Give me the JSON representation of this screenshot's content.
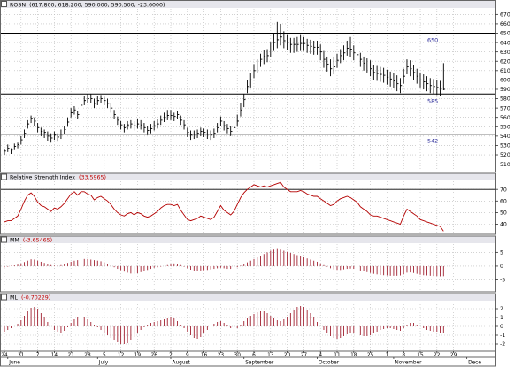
{
  "colors": {
    "background": "#ffffff",
    "panel_header_bg": "#e6e6ec",
    "price_bar": "#000000",
    "level_line": "#000000",
    "level_label": "#2a2a9a",
    "rsi_line": "#b40000",
    "histogram": "#a02030",
    "legend_value": "#c00000",
    "grid": "#b8b8b8",
    "axis_text": "#000000"
  },
  "panels": {
    "price": {
      "title": "ROSN",
      "value": "(617.800, 618.200, 590.000, 590.500, -23.6000)",
      "icon": "panel-box-icon"
    },
    "rsi": {
      "title": "Relative Strength Index",
      "value": "(33.5965)",
      "icon": "panel-box-icon"
    },
    "mm": {
      "title": "MM",
      "value": "(-3.65465)",
      "icon": "panel-box-icon"
    },
    "ml": {
      "title": "ML",
      "value": "(-0.70229)",
      "icon": "panel-box-icon"
    }
  },
  "x_axis": {
    "day_ticks": [
      {
        "i": 0,
        "label": "24"
      },
      {
        "i": 5,
        "label": "31"
      },
      {
        "i": 10,
        "label": "7"
      },
      {
        "i": 15,
        "label": "14"
      },
      {
        "i": 20,
        "label": "21"
      },
      {
        "i": 25,
        "label": "28"
      },
      {
        "i": 30,
        "label": "5"
      },
      {
        "i": 35,
        "label": "12"
      },
      {
        "i": 40,
        "label": "19"
      },
      {
        "i": 45,
        "label": "26"
      },
      {
        "i": 50,
        "label": "2"
      },
      {
        "i": 55,
        "label": "9"
      },
      {
        "i": 60,
        "label": "16"
      },
      {
        "i": 65,
        "label": "23"
      },
      {
        "i": 70,
        "label": "30"
      },
      {
        "i": 75,
        "label": "6"
      },
      {
        "i": 80,
        "label": "13"
      },
      {
        "i": 85,
        "label": "20"
      },
      {
        "i": 90,
        "label": "27"
      },
      {
        "i": 95,
        "label": "4"
      },
      {
        "i": 100,
        "label": "11"
      },
      {
        "i": 105,
        "label": "18"
      },
      {
        "i": 110,
        "label": "25"
      },
      {
        "i": 115,
        "label": "1"
      },
      {
        "i": 120,
        "label": "8"
      },
      {
        "i": 125,
        "label": "15"
      },
      {
        "i": 130,
        "label": "22"
      },
      {
        "i": 135,
        "label": "29"
      }
    ],
    "month_ticks": [
      {
        "i": 1,
        "label": "June"
      },
      {
        "i": 28,
        "label": "July"
      },
      {
        "i": 50,
        "label": "August"
      },
      {
        "i": 72,
        "label": "September"
      },
      {
        "i": 94,
        "label": "October"
      },
      {
        "i": 117,
        "label": "November"
      },
      {
        "i": 139,
        "label": "Dece"
      }
    ]
  },
  "chart_data": [
    {
      "type": "ohlc",
      "series_name": "ROSN",
      "y_ticks": [
        510,
        520,
        530,
        540,
        550,
        560,
        570,
        580,
        590,
        600,
        610,
        620,
        630,
        640,
        650,
        660,
        670
      ],
      "ylim": [
        503,
        676
      ],
      "levels": [
        {
          "value": 650,
          "label": "650"
        },
        {
          "value": 585,
          "label": "585"
        },
        {
          "value": 542,
          "label": "542"
        }
      ],
      "close": [
        524,
        527,
        525,
        529,
        531,
        536,
        543,
        553,
        559,
        556,
        549,
        545,
        544,
        540,
        538,
        541,
        539,
        542,
        547,
        555,
        565,
        568,
        563,
        573,
        578,
        580,
        580,
        575,
        578,
        580,
        578,
        575,
        570,
        563,
        557,
        552,
        549,
        552,
        553,
        551,
        553,
        552,
        549,
        546,
        548,
        551,
        553,
        557,
        560,
        562,
        562,
        561,
        563,
        557,
        552,
        544,
        541,
        542,
        543,
        545,
        544,
        542,
        541,
        543,
        549,
        556,
        551,
        548,
        545,
        549,
        556,
        568,
        579,
        593,
        600,
        610,
        616,
        622,
        625,
        626,
        632,
        640,
        643,
        646,
        642,
        640,
        638,
        638,
        638,
        639,
        639,
        637,
        636,
        635,
        635,
        630,
        622,
        617,
        612,
        614,
        621,
        626,
        629,
        634,
        633,
        629,
        627,
        622,
        618,
        616,
        612,
        608,
        607,
        606,
        605,
        603,
        601,
        599,
        596,
        594,
        604,
        614,
        612,
        608,
        604,
        600,
        598,
        596,
        594,
        593,
        592,
        591,
        590
      ],
      "high": [
        526,
        531,
        527,
        532,
        533,
        540,
        547,
        557,
        562,
        560,
        554,
        549,
        547,
        545,
        543,
        545,
        543,
        547,
        551,
        560,
        570,
        572,
        567,
        578,
        583,
        585,
        585,
        580,
        583,
        584,
        582,
        580,
        575,
        568,
        561,
        556,
        553,
        556,
        557,
        556,
        558,
        557,
        554,
        551,
        553,
        556,
        558,
        562,
        565,
        568,
        568,
        565,
        567,
        562,
        557,
        549,
        546,
        546,
        547,
        549,
        548,
        547,
        546,
        548,
        554,
        561,
        556,
        553,
        551,
        554,
        563,
        575,
        585,
        600,
        607,
        617,
        622,
        628,
        632,
        633,
        640,
        650,
        662,
        660,
        652,
        648,
        645,
        645,
        646,
        648,
        646,
        644,
        643,
        642,
        642,
        638,
        631,
        625,
        622,
        625,
        628,
        633,
        637,
        642,
        646,
        637,
        634,
        629,
        625,
        623,
        621,
        616,
        615,
        614,
        613,
        611,
        609,
        607,
        605,
        602,
        612,
        622,
        621,
        616,
        612,
        608,
        606,
        604,
        602,
        601,
        600,
        599,
        618
      ],
      "low": [
        520,
        523,
        521,
        525,
        527,
        531,
        538,
        548,
        554,
        551,
        544,
        540,
        538,
        535,
        533,
        536,
        534,
        537,
        542,
        550,
        560,
        563,
        558,
        568,
        573,
        575,
        575,
        570,
        573,
        575,
        573,
        570,
        565,
        558,
        552,
        547,
        544,
        547,
        548,
        546,
        548,
        547,
        544,
        541,
        543,
        546,
        548,
        552,
        555,
        557,
        557,
        556,
        558,
        552,
        547,
        539,
        536,
        537,
        538,
        540,
        539,
        537,
        536,
        538,
        544,
        551,
        546,
        543,
        540,
        544,
        550,
        561,
        571,
        586,
        592,
        602,
        608,
        614,
        617,
        619,
        624,
        631,
        634,
        637,
        634,
        632,
        629,
        629,
        630,
        631,
        631,
        629,
        628,
        627,
        627,
        621,
        613,
        609,
        604,
        606,
        613,
        618,
        621,
        626,
        625,
        621,
        619,
        614,
        610,
        608,
        604,
        600,
        599,
        598,
        597,
        595,
        593,
        591,
        588,
        586,
        596,
        606,
        604,
        600,
        596,
        592,
        590,
        588,
        586,
        585,
        584,
        583,
        589
      ]
    },
    {
      "type": "line",
      "series_name": "Relative Strength Index",
      "y_ticks": [
        40,
        50,
        60,
        70
      ],
      "ylim": [
        32,
        77
      ],
      "levels": [
        {
          "value": 70
        },
        {
          "value": 30
        }
      ],
      "values": [
        42,
        43,
        43,
        45,
        47,
        53,
        60,
        65,
        67,
        64,
        59,
        56,
        55,
        53,
        51,
        54,
        53,
        55,
        58,
        62,
        66,
        68,
        65,
        68,
        68,
        66,
        65,
        61,
        63,
        64,
        62,
        60,
        57,
        53,
        50,
        48,
        47,
        49,
        50,
        48,
        50,
        49,
        47,
        46,
        47,
        49,
        51,
        54,
        56,
        57,
        57,
        56,
        57,
        52,
        48,
        44,
        43,
        44,
        45,
        47,
        46,
        45,
        44,
        46,
        51,
        56,
        52,
        50,
        48,
        51,
        57,
        63,
        67,
        70,
        72,
        74,
        73,
        72,
        73,
        72,
        73,
        74,
        75,
        76,
        72,
        70,
        68,
        68,
        68,
        69,
        68,
        66,
        65,
        64,
        64,
        62,
        60,
        58,
        56,
        57,
        60,
        62,
        63,
        64,
        63,
        61,
        59,
        55,
        53,
        51,
        48,
        47,
        47,
        46,
        45,
        44,
        43,
        42,
        41,
        40,
        47,
        53,
        51,
        49,
        47,
        44,
        43,
        42,
        41,
        40,
        39,
        38,
        34
      ]
    },
    {
      "type": "histogram",
      "series_name": "MM",
      "y_ticks": [
        -5,
        0,
        5
      ],
      "ylim": [
        -9,
        8
      ],
      "values": [
        -0.4,
        -0.2,
        0.1,
        0.3,
        0.6,
        1.0,
        1.5,
        2.0,
        2.5,
        2.4,
        2.0,
        1.6,
        1.2,
        0.8,
        0.4,
        0.2,
        0.2,
        0.4,
        0.8,
        1.2,
        1.6,
        2.0,
        2.2,
        2.4,
        2.6,
        2.6,
        2.4,
        2.2,
        2.0,
        1.8,
        1.4,
        0.8,
        0.2,
        -0.4,
        -1.0,
        -1.5,
        -2.0,
        -2.4,
        -2.7,
        -2.8,
        -2.6,
        -2.2,
        -1.8,
        -1.4,
        -1.0,
        -0.6,
        -0.4,
        -0.2,
        0.0,
        0.4,
        0.8,
        1.0,
        0.8,
        0.4,
        -0.2,
        -0.8,
        -1.3,
        -1.6,
        -1.7,
        -1.6,
        -1.5,
        -1.4,
        -1.2,
        -1.0,
        -0.8,
        -0.6,
        -0.8,
        -1.0,
        -1.0,
        -0.8,
        -0.4,
        0.2,
        0.8,
        1.4,
        2.0,
        2.6,
        3.2,
        3.8,
        4.4,
        5.0,
        5.6,
        6.0,
        6.2,
        6.0,
        5.6,
        5.2,
        4.8,
        4.4,
        4.0,
        3.6,
        3.2,
        2.8,
        2.4,
        2.0,
        1.6,
        1.0,
        0.4,
        -0.2,
        -0.8,
        -1.2,
        -1.4,
        -1.4,
        -1.2,
        -1.0,
        -0.9,
        -1.0,
        -1.2,
        -1.6,
        -1.9,
        -2.2,
        -2.5,
        -2.8,
        -3.0,
        -3.2,
        -3.3,
        -3.4,
        -3.5,
        -3.5,
        -3.5,
        -3.4,
        -3.0,
        -2.4,
        -2.3,
        -2.5,
        -2.8,
        -3.1,
        -3.3,
        -3.4,
        -3.5,
        -3.6,
        -3.6,
        -3.7,
        -3.65
      ]
    },
    {
      "type": "histogram",
      "series_name": "ML",
      "y_ticks": [
        -2,
        -1,
        0,
        1,
        2
      ],
      "ylim": [
        -2.7,
        2.8
      ],
      "values": [
        -0.6,
        -0.4,
        -0.2,
        0.0,
        0.3,
        0.7,
        1.2,
        1.7,
        2.1,
        2.2,
        2.0,
        1.5,
        1.0,
        0.5,
        0.0,
        -0.4,
        -0.6,
        -0.7,
        -0.5,
        -0.1,
        0.4,
        0.8,
        1.0,
        1.1,
        1.0,
        0.8,
        0.5,
        0.2,
        -0.1,
        -0.4,
        -0.7,
        -1.0,
        -1.3,
        -1.6,
        -1.8,
        -2.0,
        -2.0,
        -1.9,
        -1.6,
        -1.2,
        -0.8,
        -0.4,
        -0.1,
        0.2,
        0.4,
        0.5,
        0.6,
        0.7,
        0.8,
        0.9,
        1.0,
        0.9,
        0.6,
        0.2,
        -0.2,
        -0.6,
        -1.0,
        -1.3,
        -1.4,
        -1.2,
        -0.8,
        -0.4,
        0.0,
        0.3,
        0.5,
        0.6,
        0.4,
        0.1,
        -0.2,
        -0.4,
        -0.2,
        0.2,
        0.6,
        0.9,
        1.2,
        1.4,
        1.6,
        1.7,
        1.7,
        1.5,
        1.2,
        0.9,
        0.7,
        0.6,
        0.8,
        1.1,
        1.5,
        1.9,
        2.2,
        2.3,
        2.2,
        1.9,
        1.5,
        1.0,
        0.5,
        0.0,
        -0.4,
        -0.8,
        -1.1,
        -1.3,
        -1.4,
        -1.3,
        -1.1,
        -0.9,
        -0.8,
        -0.8,
        -0.9,
        -1.0,
        -1.1,
        -1.1,
        -1.0,
        -0.8,
        -0.6,
        -0.4,
        -0.3,
        -0.2,
        -0.2,
        -0.3,
        -0.4,
        -0.5,
        -0.2,
        0.2,
        0.4,
        0.4,
        0.2,
        0.0,
        -0.2,
        -0.4,
        -0.5,
        -0.6,
        -0.6,
        -0.7,
        -0.7
      ]
    }
  ]
}
